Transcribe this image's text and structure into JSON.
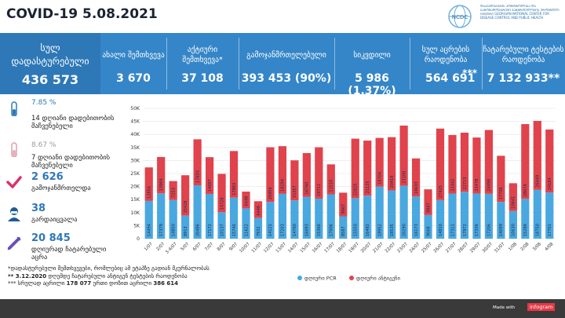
{
  "header": {
    "title": "COVID-19 5.08.2021",
    "logo_abbr": "NCDC",
    "logo_text": "ᲓᲐᲐᲕᲐᲓᲔᲑᲔᲑᲘᲡ ᲙᲝᲜᲢᲠᲝᲚᲘᲡᲐ ᲓᲐ ᲡᲐᲖᲝᲒᲐᲓᲝᲔᲑᲠᲘᲕᲘ ᲯᲐᲜᲛᲠᲗᲔᲚᲝᲑᲘᲡ ᲔᲠᲝᲕᲜᲣᲚᲘ ᲪᲔᲜᲢᲠᲘ GEORGIAN NATIONAL CENTER FOR DISEASE CONTROL AND PUBLIC HEALTH"
  },
  "stats": [
    {
      "label": "სულ დადასტურებული",
      "value": "436 573"
    },
    {
      "label": "ახალი შემთხვევა",
      "value": "3 670"
    },
    {
      "label": "აქტიური შემთხვევა*",
      "value": "37 108"
    },
    {
      "label": "გამოჯანმრთელებული",
      "value": "393 453 (90%)"
    },
    {
      "label": "სიკვდილი",
      "value": "5 986 (1.37%)"
    },
    {
      "label": "სულ აცრების რაოდენობა",
      "value": "564 691",
      "mark": "***"
    },
    {
      "label": "ჩატარებული ტესტების რაოდენობა",
      "value": "7 132 933**"
    }
  ],
  "side": {
    "pct14": "7.85 %",
    "desc14": "14 დღიანი დადებითობის მაჩვენებელი",
    "pct7": "8.67 %",
    "desc7": "7 დღიანი დადებითობის მაჩვენებელი",
    "recovered_value": "2 626",
    "recovered_label": "გამოჯანმრთელდა",
    "deaths_value": "38",
    "deaths_label": "გარდაიცვალა",
    "tests_value": "20 845",
    "tests_label": "დღიურად ჩატარებული აცრა"
  },
  "notes": {
    "n1": "*დადასტურებული შემთხვევები, რომლებიც ამ ეტაპზე გადიან მკურნალობას",
    "n2_mark": "** 3.12.2020",
    "n2": "დღემდე ჩატარებული ანტიგენ ტესტების რაოდენობა",
    "n3_mark": "***",
    "n3_a": "სრულად აცრილი",
    "n3_b": "178 077",
    "n3_c": "ერთი დოზით აცრილი",
    "n3_d": "386 614"
  },
  "footer": {
    "made_with": "Made with",
    "brand": "infogram"
  },
  "chart_data": {
    "type": "bar",
    "stacked": true,
    "categories": [
      "1/07",
      "2/07",
      "3-4/07",
      "5/07",
      "6/07",
      "7/07",
      "8/07",
      "9/07",
      "10/07",
      "11/07",
      "12/07",
      "13/07",
      "14/07",
      "15/07",
      "16/07",
      "17/07",
      "18/07",
      "19/07",
      "20/07",
      "21/07",
      "22/07",
      "23/07",
      "24/07",
      "25/07",
      "26/07",
      "27/07",
      "28/07",
      "29/07",
      "30/07",
      "31/07",
      "1/08",
      "2/08",
      "3/08",
      "4/08"
    ],
    "y_ticks": [
      "0",
      "5K",
      "10K",
      "15K",
      "20K",
      "25K",
      "30K",
      "35K",
      "40K",
      "45K",
      "50K"
    ],
    "ylim": [
      0,
      50000
    ],
    "series": [
      {
        "name": "დღიური PCR",
        "color": "#4aa8e0",
        "values": [
          14494,
          17379,
          14850,
          8913,
          20486,
          17172,
          10137,
          15746,
          11622,
          7932,
          14121,
          17203,
          14700,
          16093,
          15366,
          17006,
          8587,
          15550,
          16492,
          19952,
          18535,
          20290,
          16173,
          9068,
          14810,
          17311,
          17972,
          17336,
          17206,
          14099,
          10630,
          15288,
          18750,
          17701
        ]
      },
      {
        "name": "დღიური ანტიგენი",
        "color": "#e0434c",
        "values": [
          12856,
          13964,
          7253,
          15428,
          17650,
          14097,
          14728,
          17883,
          6448,
          6448,
          20956,
          18294,
          15357,
          16760,
          19711,
          11510,
          9067,
          22825,
          21135,
          18704,
          20419,
          23100,
          14633,
          9867,
          27425,
          22442,
          22713,
          21478,
          24498,
          17706,
          10641,
          28674,
          26449,
          24184
        ]
      }
    ],
    "legend_position": "bottom",
    "grid": true
  }
}
